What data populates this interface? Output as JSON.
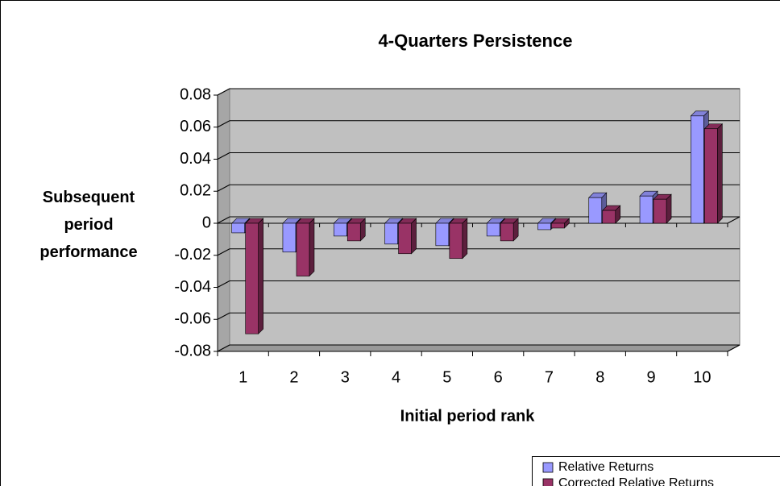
{
  "chart_data": {
    "type": "bar",
    "title": "4-Quarters Persistence",
    "x_label": "Initial period rank",
    "y_label": "Subsequent period performance",
    "categories": [
      "1",
      "2",
      "3",
      "4",
      "5",
      "6",
      "7",
      "8",
      "9",
      "10"
    ],
    "series": [
      {
        "name": "Relative Returns",
        "color": "#9999ff",
        "values": [
          -0.006,
          -0.018,
          -0.008,
          -0.013,
          -0.014,
          -0.008,
          -0.004,
          0.016,
          0.017,
          0.067
        ]
      },
      {
        "name": "Corrected Relative Returns",
        "color": "#993366",
        "values": [
          -0.069,
          -0.033,
          -0.011,
          -0.019,
          -0.022,
          -0.011,
          -0.003,
          0.008,
          0.015,
          0.059
        ]
      }
    ],
    "ylim": [
      -0.08,
      0.08
    ],
    "yticks": [
      -0.08,
      -0.06,
      -0.04,
      -0.02,
      0,
      0.02,
      0.04,
      0.06,
      0.08
    ],
    "grid": true,
    "legend": "bottom-right"
  }
}
